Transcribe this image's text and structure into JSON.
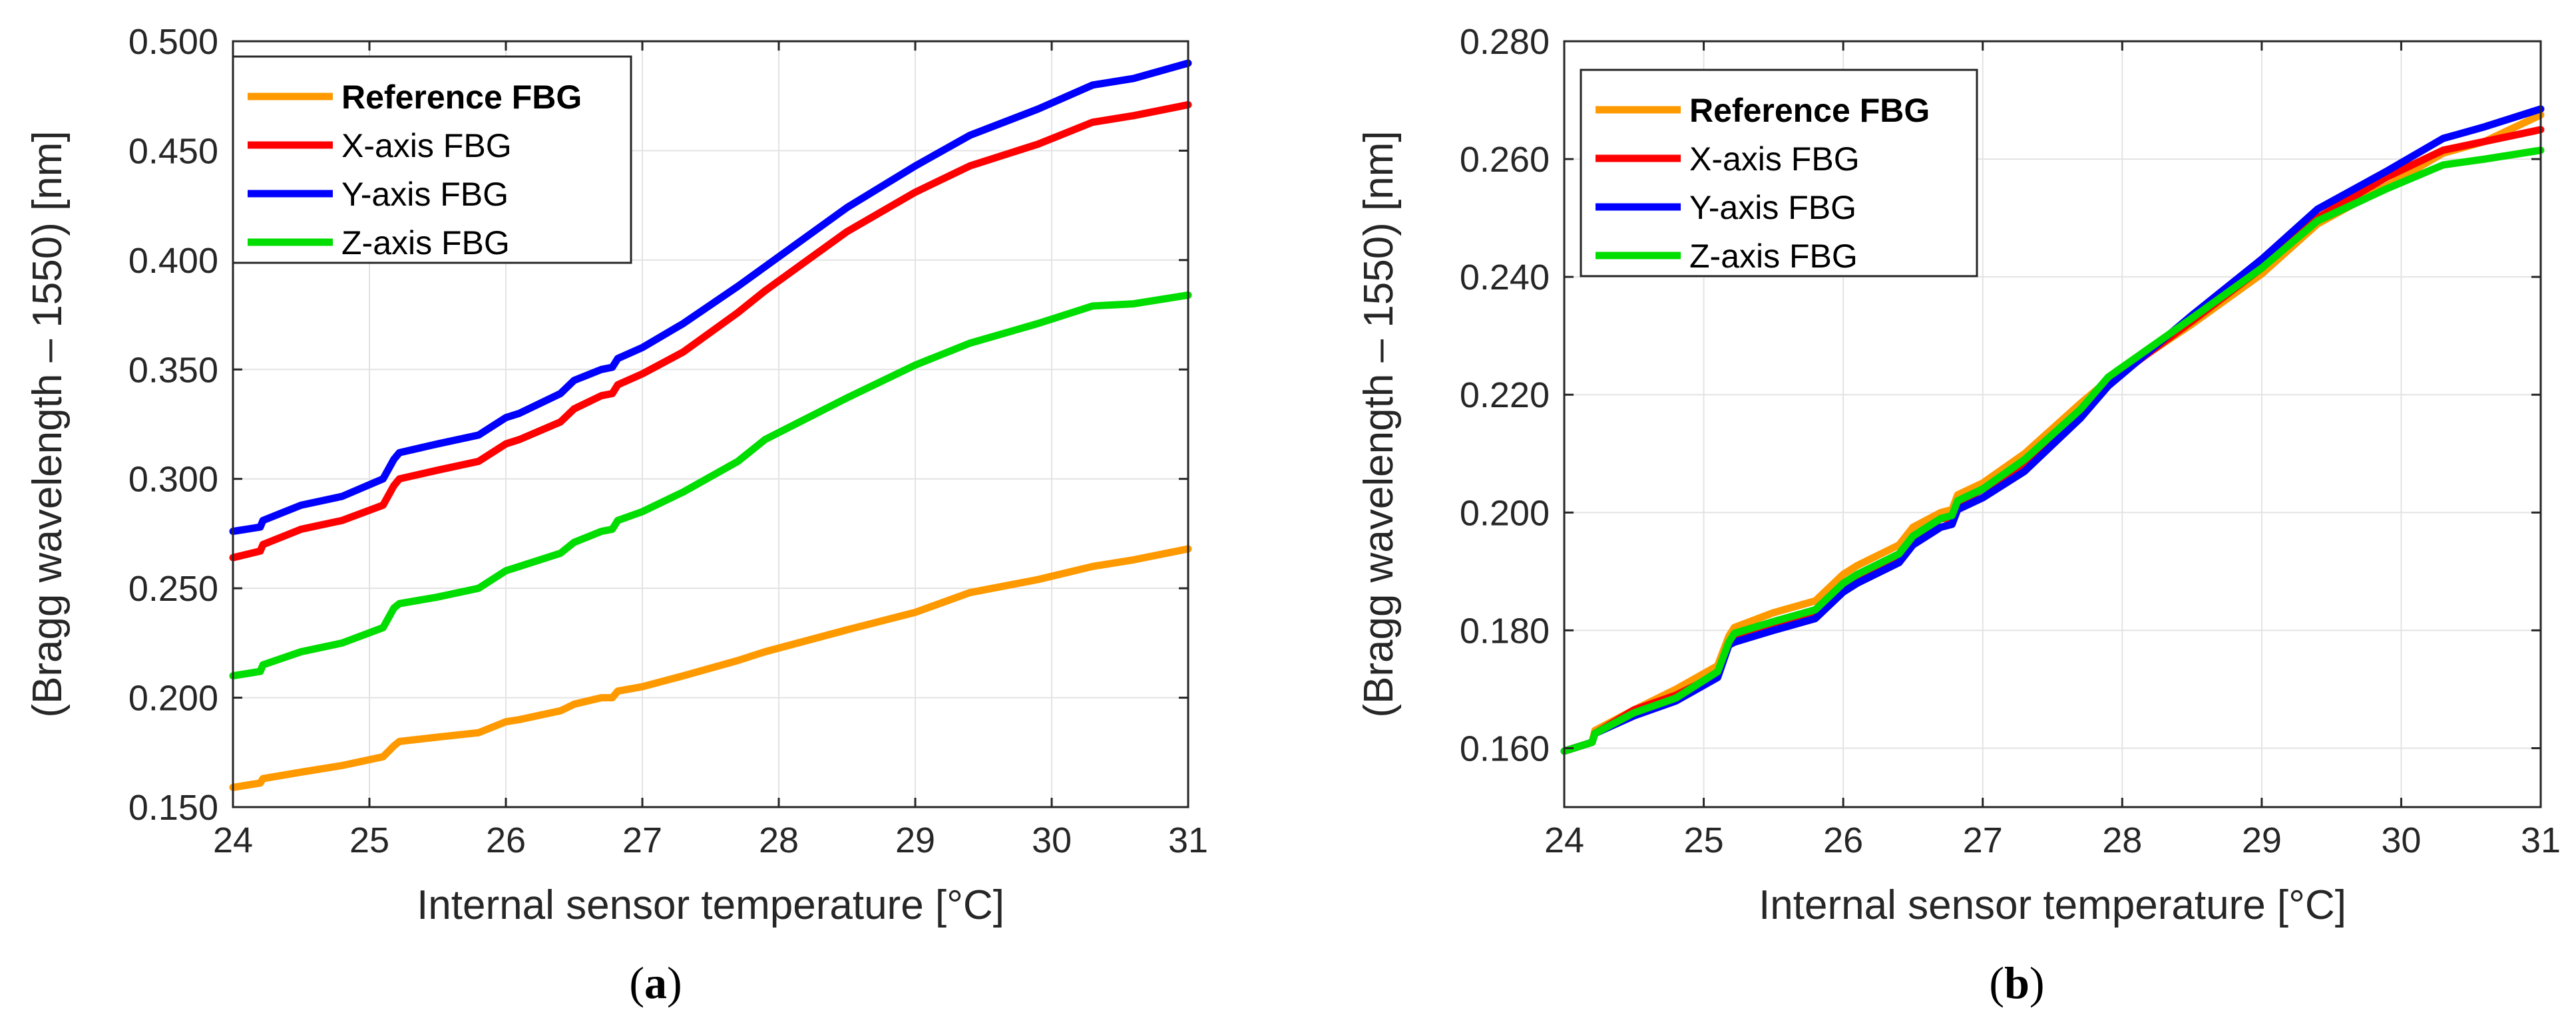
{
  "chart_data": [
    {
      "type": "line",
      "caption_letter": "a",
      "xlabel": "Internal sensor temperature [°C]",
      "ylabel": "(Bragg wavelength – 1550) [nm]",
      "xlim": [
        24,
        31
      ],
      "ylim": [
        0.15,
        0.5
      ],
      "xticks": [
        24,
        25,
        26,
        27,
        28,
        29,
        30,
        31
      ],
      "xtick_labels": [
        "24",
        "25",
        "26",
        "27",
        "28",
        "29",
        "30",
        "31"
      ],
      "yticks": [
        0.15,
        0.2,
        0.25,
        0.3,
        0.35,
        0.4,
        0.45,
        0.5
      ],
      "ytick_labels": [
        "0.150",
        "0.200",
        "0.250",
        "0.300",
        "0.350",
        "0.400",
        "0.450",
        "0.500"
      ],
      "grid": true,
      "legend": "top-left",
      "x": [
        24.0,
        24.2,
        24.22,
        24.5,
        24.8,
        25.1,
        25.18,
        25.22,
        25.5,
        25.8,
        26.0,
        26.1,
        26.4,
        26.5,
        26.7,
        26.78,
        26.82,
        27.0,
        27.3,
        27.7,
        27.9,
        28.5,
        29.0,
        29.4,
        29.9,
        30.3,
        30.6,
        31.0
      ],
      "series": [
        {
          "name": "Reference FBG",
          "color": "#ff9900",
          "bold": true,
          "values": [
            0.159,
            0.161,
            0.163,
            0.166,
            0.169,
            0.173,
            0.178,
            0.18,
            0.182,
            0.184,
            0.189,
            0.19,
            0.194,
            0.197,
            0.2,
            0.2,
            0.203,
            0.205,
            0.21,
            0.217,
            0.221,
            0.231,
            0.239,
            0.248,
            0.254,
            0.26,
            0.263,
            0.268
          ]
        },
        {
          "name": "X-axis FBG",
          "color": "#ff0000",
          "bold": false,
          "values": [
            0.264,
            0.267,
            0.27,
            0.277,
            0.281,
            0.288,
            0.297,
            0.3,
            0.304,
            0.308,
            0.316,
            0.318,
            0.326,
            0.332,
            0.338,
            0.339,
            0.343,
            0.348,
            0.358,
            0.376,
            0.386,
            0.413,
            0.431,
            0.443,
            0.453,
            0.463,
            0.466,
            0.471
          ]
        },
        {
          "name": "Y-axis FBG",
          "color": "#0000ff",
          "bold": false,
          "values": [
            0.276,
            0.278,
            0.281,
            0.288,
            0.292,
            0.3,
            0.309,
            0.312,
            0.316,
            0.32,
            0.328,
            0.33,
            0.339,
            0.345,
            0.35,
            0.351,
            0.355,
            0.36,
            0.371,
            0.388,
            0.397,
            0.424,
            0.443,
            0.457,
            0.469,
            0.48,
            0.483,
            0.49
          ]
        },
        {
          "name": "Z-axis FBG",
          "color": "#00dd00",
          "bold": false,
          "values": [
            0.21,
            0.212,
            0.215,
            0.221,
            0.225,
            0.232,
            0.241,
            0.243,
            0.246,
            0.25,
            0.258,
            0.26,
            0.266,
            0.271,
            0.276,
            0.277,
            0.281,
            0.285,
            0.294,
            0.308,
            0.318,
            0.337,
            0.352,
            0.362,
            0.371,
            0.379,
            0.38,
            0.384
          ]
        }
      ]
    },
    {
      "type": "line",
      "caption_letter": "b",
      "xlabel": "Internal sensor temperature [°C]",
      "ylabel": "(Bragg wavelength – 1550) [nm]",
      "xlim": [
        24,
        31
      ],
      "ylim": [
        0.15,
        0.28
      ],
      "xticks": [
        24,
        25,
        26,
        27,
        28,
        29,
        30,
        31
      ],
      "xtick_labels": [
        "24",
        "25",
        "26",
        "27",
        "28",
        "29",
        "30",
        "31"
      ],
      "yticks": [
        0.16,
        0.18,
        0.2,
        0.22,
        0.24,
        0.26,
        0.28
      ],
      "ytick_labels": [
        "0.160",
        "0.180",
        "0.200",
        "0.220",
        "0.240",
        "0.260",
        "0.280"
      ],
      "grid": true,
      "legend": "top-left",
      "x": [
        24.0,
        24.2,
        24.22,
        24.5,
        24.8,
        25.1,
        25.18,
        25.22,
        25.5,
        25.8,
        26.0,
        26.1,
        26.4,
        26.5,
        26.7,
        26.78,
        26.82,
        27.0,
        27.3,
        27.7,
        27.9,
        28.5,
        29.0,
        29.4,
        29.9,
        30.3,
        30.6,
        31.0
      ],
      "series": [
        {
          "name": "Reference FBG",
          "color": "#ff9900",
          "bold": true,
          "values": [
            0.1595,
            0.161,
            0.163,
            0.1665,
            0.17,
            0.174,
            0.179,
            0.1805,
            0.183,
            0.185,
            0.1895,
            0.191,
            0.1945,
            0.1975,
            0.2,
            0.2005,
            0.203,
            0.205,
            0.21,
            0.2185,
            0.2225,
            0.232,
            0.2405,
            0.249,
            0.2555,
            0.261,
            0.263,
            0.2675
          ]
        },
        {
          "name": "X-axis FBG",
          "color": "#ff0000",
          "bold": false,
          "values": [
            0.1595,
            0.161,
            0.1625,
            0.1665,
            0.169,
            0.1725,
            0.178,
            0.179,
            0.181,
            0.183,
            0.187,
            0.189,
            0.1925,
            0.1955,
            0.199,
            0.199,
            0.2015,
            0.204,
            0.208,
            0.2165,
            0.222,
            0.2325,
            0.2415,
            0.25,
            0.257,
            0.2615,
            0.263,
            0.265
          ]
        },
        {
          "name": "Y-axis FBG",
          "color": "#0000ff",
          "bold": false,
          "values": [
            0.1595,
            0.161,
            0.1625,
            0.1655,
            0.168,
            0.172,
            0.1775,
            0.178,
            0.18,
            0.182,
            0.1865,
            0.188,
            0.1915,
            0.1945,
            0.1975,
            0.198,
            0.2005,
            0.2025,
            0.207,
            0.216,
            0.2215,
            0.2335,
            0.243,
            0.2515,
            0.258,
            0.2635,
            0.2655,
            0.2685
          ]
        },
        {
          "name": "Z-axis FBG",
          "color": "#00dd00",
          "bold": false,
          "values": [
            0.1595,
            0.161,
            0.1625,
            0.166,
            0.1685,
            0.173,
            0.178,
            0.1795,
            0.1815,
            0.1835,
            0.188,
            0.1895,
            0.193,
            0.196,
            0.199,
            0.1995,
            0.202,
            0.204,
            0.209,
            0.2175,
            0.223,
            0.233,
            0.2415,
            0.2495,
            0.255,
            0.259,
            0.26,
            0.2615
          ]
        }
      ]
    }
  ]
}
